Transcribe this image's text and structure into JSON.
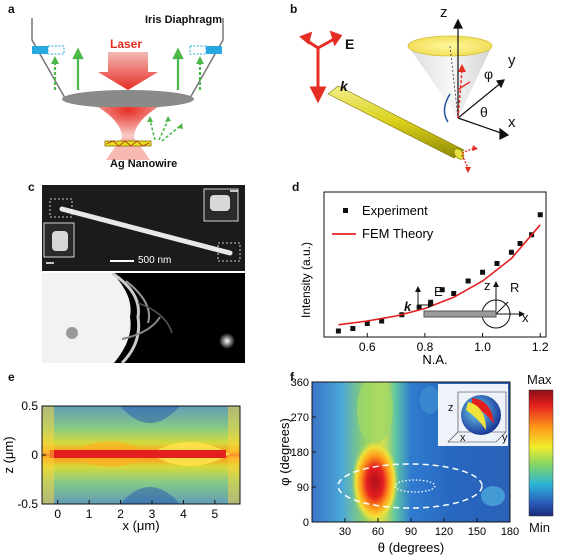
{
  "panels": {
    "a": {
      "label": "a",
      "iris_label": "Iris Diaphragm",
      "laser_label": "Laser",
      "nanowire_label": "Ag Nanowire"
    },
    "b": {
      "label": "b",
      "field_label": "E",
      "wavevector_label": "k",
      "axis_z": "z",
      "axis_y": "y",
      "axis_x": "x",
      "angle_phi": "φ",
      "angle_theta": "θ"
    },
    "c": {
      "label": "c",
      "scalebar_label": "500 nm"
    },
    "d": {
      "label": "d",
      "inset_E": "E",
      "inset_k": "k",
      "inset_z": "z",
      "inset_R": "R",
      "inset_x": "x"
    },
    "e": {
      "label": "e"
    },
    "f": {
      "label": "f",
      "colorbar_max": "Max",
      "colorbar_min": "Min",
      "inset_z": "z",
      "inset_x": "x",
      "inset_y": "y"
    }
  },
  "chart_data": [
    {
      "type": "scatter",
      "panel": "d",
      "xlabel": "N.A.",
      "ylabel": "Intensity (a.u.)",
      "xlim": [
        0.45,
        1.22
      ],
      "x_ticks": [
        "0.6",
        "0.8",
        "1.0",
        "1.2"
      ],
      "x_tick_values": [
        0.6,
        0.8,
        1.0,
        1.2
      ],
      "legend_position": "top-left",
      "series": [
        {
          "name": "Experiment",
          "kind": "points",
          "x": [
            0.5,
            0.55,
            0.6,
            0.65,
            0.72,
            0.78,
            0.82,
            0.86,
            0.9,
            0.95,
            1.0,
            1.05,
            1.1,
            1.13,
            1.17,
            1.2
          ],
          "y": [
            0.0,
            0.02,
            0.06,
            0.08,
            0.13,
            0.19,
            0.23,
            0.33,
            0.3,
            0.4,
            0.47,
            0.54,
            0.63,
            0.7,
            0.77,
            0.93
          ]
        },
        {
          "name": "FEM Theory",
          "kind": "line",
          "color": "#e41f1f",
          "x": [
            0.5,
            0.6,
            0.7,
            0.8,
            0.9,
            1.0,
            1.1,
            1.2
          ],
          "y": [
            0.05,
            0.08,
            0.12,
            0.18,
            0.27,
            0.4,
            0.58,
            0.85
          ]
        }
      ]
    },
    {
      "type": "heatmap",
      "panel": "e",
      "xlabel": "x (μm)",
      "ylabel": "z (μm)",
      "xlim": [
        -0.5,
        5.8
      ],
      "ylim": [
        -0.5,
        0.5
      ],
      "x_ticks": [
        "0",
        "1",
        "2",
        "3",
        "4",
        "5"
      ],
      "x_tick_values": [
        0,
        1,
        2,
        3,
        4,
        5
      ],
      "y_ticks": [
        "0.5",
        "0",
        "-0.5"
      ],
      "y_tick_values": [
        0.5,
        0,
        -0.5
      ]
    },
    {
      "type": "heatmap",
      "panel": "f",
      "xlabel": "θ (degrees)",
      "ylabel": "φ (degrees)",
      "xlim": [
        0,
        180
      ],
      "ylim": [
        0,
        360
      ],
      "x_ticks": [
        "30",
        "60",
        "90",
        "120",
        "150",
        "180"
      ],
      "x_tick_values": [
        30,
        60,
        90,
        120,
        150,
        180
      ],
      "y_ticks": [
        "360",
        "270",
        "180",
        "90",
        "0"
      ],
      "y_tick_values": [
        360,
        270,
        180,
        90,
        0
      ]
    }
  ]
}
